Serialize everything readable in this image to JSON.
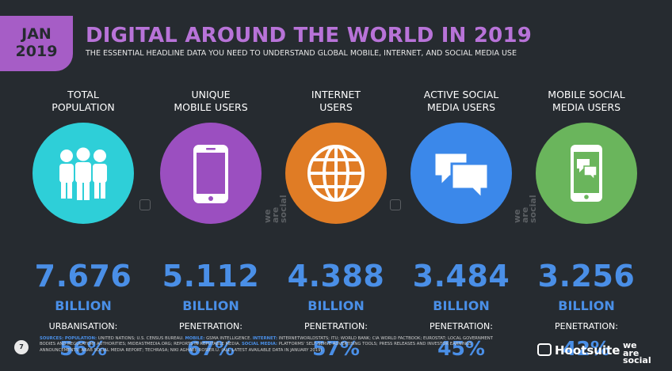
{
  "header": {
    "date_month": "JAN",
    "date_year": "2019",
    "title": "DIGITAL AROUND THE WORLD IN 2019",
    "subtitle": "THE ESSENTIAL HEADLINE DATA YOU NEED TO UNDERSTAND GLOBAL MOBILE, INTERNET, AND SOCIAL MEDIA USE"
  },
  "stats": [
    {
      "label_1": "TOTAL",
      "label_2": "POPULATION",
      "value": "7.676",
      "unit": "BILLION",
      "sublabel": "URBANISATION:",
      "percent": "56%",
      "color": "#2ecfd8",
      "icon": "people-icon"
    },
    {
      "label_1": "UNIQUE",
      "label_2": "MOBILE USERS",
      "value": "5.112",
      "unit": "BILLION",
      "sublabel": "PENETRATION:",
      "percent": "67%",
      "color": "#9b4fc0",
      "icon": "mobile-phone-icon"
    },
    {
      "label_1": "INTERNET",
      "label_2": "USERS",
      "value": "4.388",
      "unit": "BILLION",
      "sublabel": "PENETRATION:",
      "percent": "57%",
      "color": "#e07c25",
      "icon": "globe-icon"
    },
    {
      "label_1": "ACTIVE SOCIAL",
      "label_2": "MEDIA USERS",
      "value": "3.484",
      "unit": "BILLION",
      "sublabel": "PENETRATION:",
      "percent": "45%",
      "color": "#3b88ea",
      "icon": "chat-bubbles-icon"
    },
    {
      "label_1": "MOBILE SOCIAL",
      "label_2": "MEDIA USERS",
      "value": "3.256",
      "unit": "BILLION",
      "sublabel": "PENETRATION:",
      "percent": "42%",
      "color": "#6ab55c",
      "icon": "mobile-chat-icon"
    }
  ],
  "watermark": {
    "we": "we",
    "are": "are",
    "social": "social"
  },
  "footer": {
    "page_number": "7",
    "sources_label": "SOURCES:",
    "k_population": "POPULATION:",
    "t_population": "UNITED NATIONS; U.S. CENSUS BUREAU.",
    "k_mobile": "MOBILE:",
    "t_mobile": "GSMA INTELLIGENCE.",
    "k_internet": "INTERNET:",
    "t_internet": "INTERNETWORLDSTATS; ITU; WORLD BANK; CIA WORLD FACTBOOK; EUROSTAT; LOCAL GOVERNMENT BODIES AND REGULATORY AUTHORITIES; MIDEASTMEDIA.ORG; REPORTS IN REPUTABLE MEDIA.",
    "k_social": "SOCIAL MEDIA:",
    "t_social": "PLATFORMS' SELF-SERVE ADVERTISING TOOLS; PRESS RELEASES AND INVESTOR EARNINGS ANNOUNCEMENTS; ARAB SOCIAL MEDIA REPORT; TECHRASA; NIKI AGHAEI; ROSIER.U. (ALL LATEST AVAILABLE DATA IN JANUARY 2019).",
    "hootsuite": "Hootsuite",
    "brand_we": "we",
    "brand_are": "are",
    "brand_social": "social"
  }
}
